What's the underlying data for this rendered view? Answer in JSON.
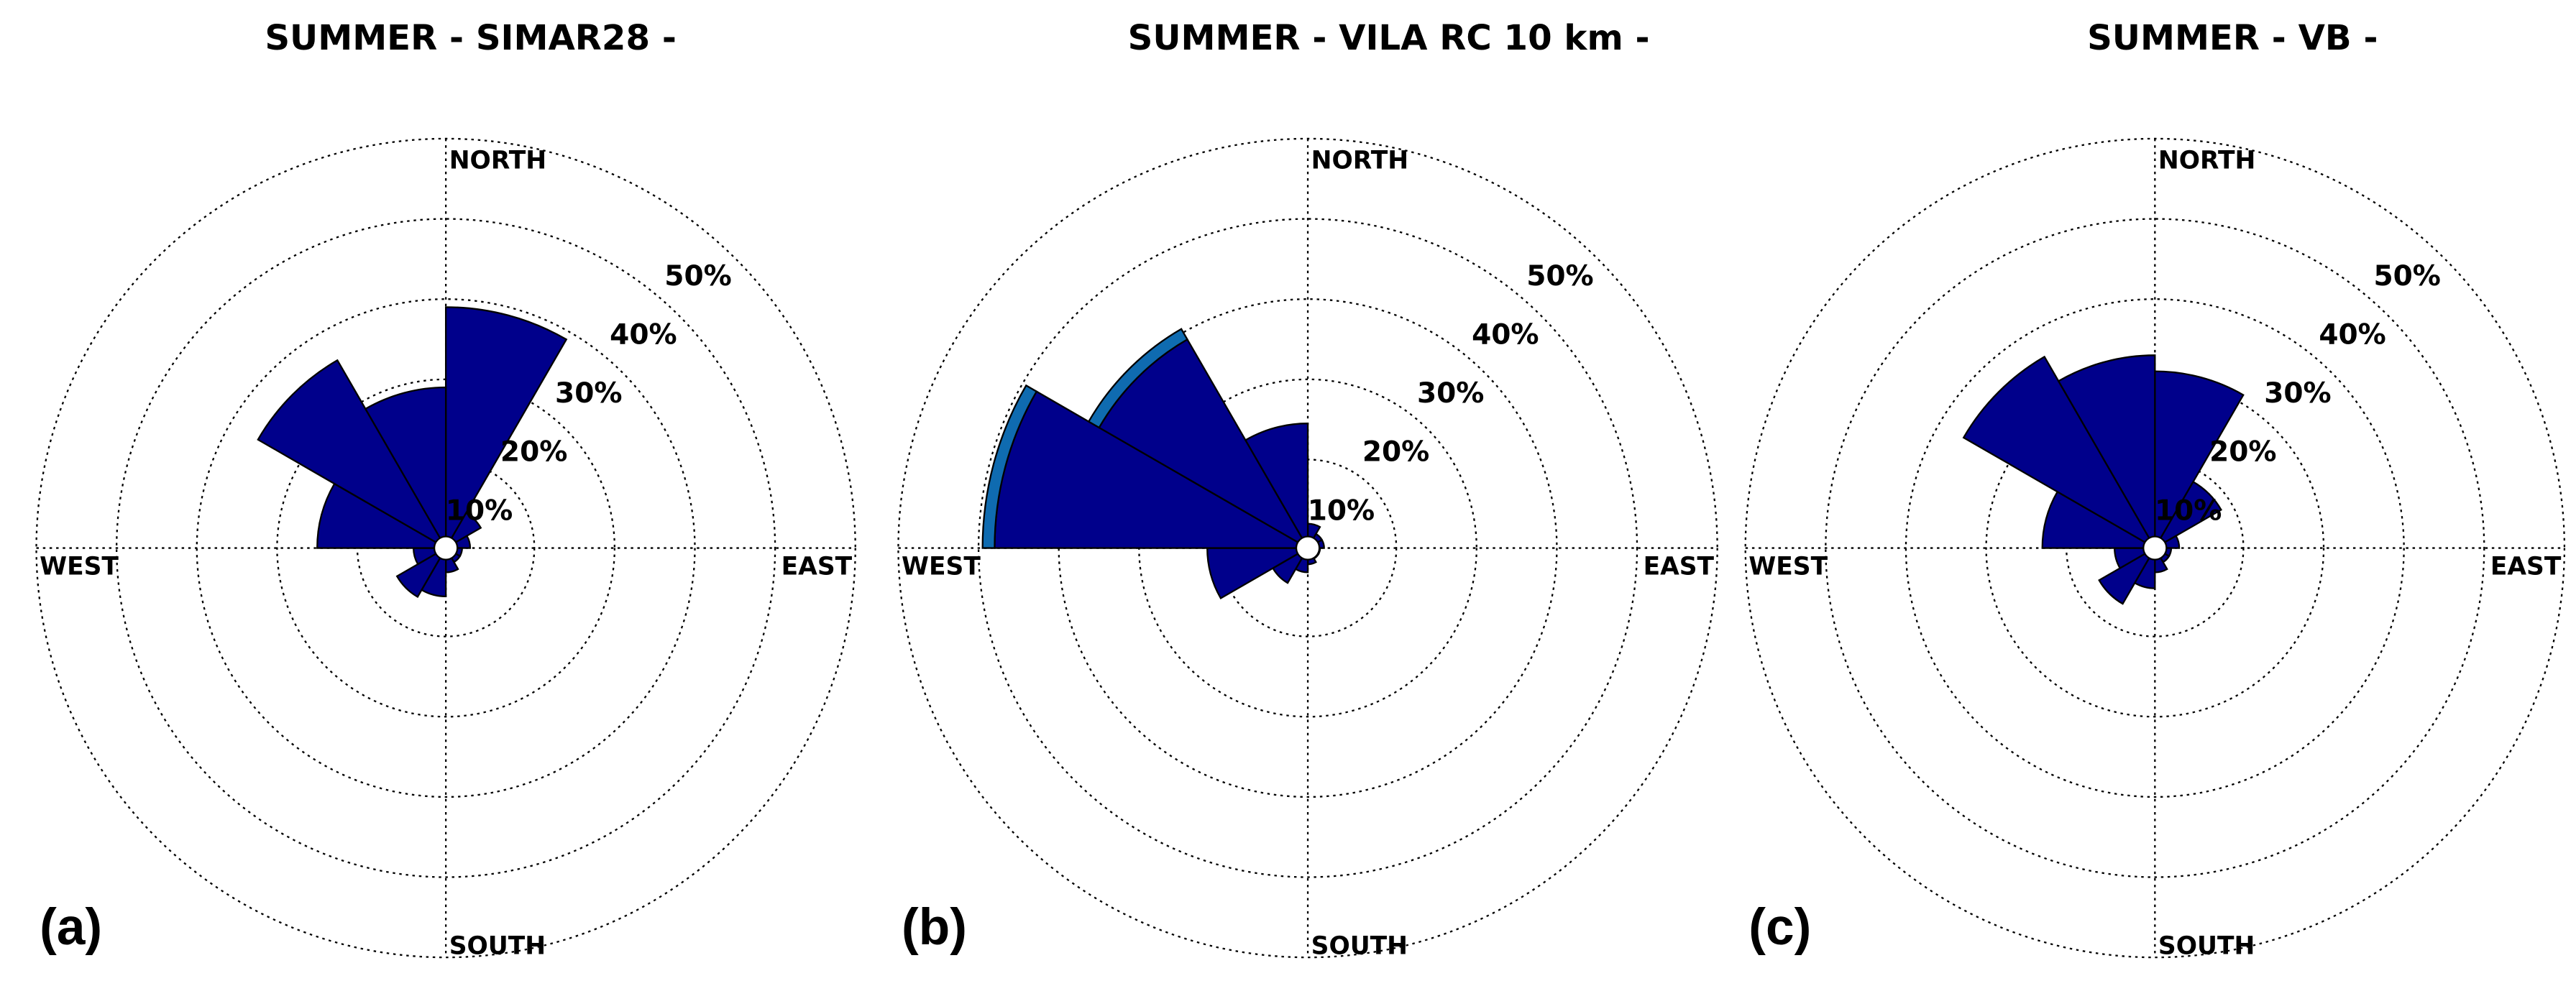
{
  "chart_data": [
    {
      "type": "polar_bar",
      "title": "SUMMER - SIMAR28 -",
      "panel_label": "(a)",
      "direction_labels": [
        "NORTH",
        "EAST",
        "SOUTH",
        "WEST"
      ],
      "x": [
        0,
        30,
        60,
        90,
        120,
        150,
        180,
        210,
        240,
        270,
        300,
        330
      ],
      "series": [
        {
          "color": "#00008b",
          "values": [
            29,
            4,
            2,
            1,
            1,
            2,
            5,
            6,
            3,
            15,
            26,
            19
          ]
        }
      ],
      "rlim": [
        0,
        50
      ],
      "rticks": [
        {
          "value": 10,
          "label": "10%"
        },
        {
          "value": 20,
          "label": "20%"
        },
        {
          "value": 30,
          "label": "30%"
        },
        {
          "value": 40,
          "label": "40%"
        },
        {
          "value": 50,
          "label": "50%"
        }
      ],
      "grid": true
    },
    {
      "type": "polar_bar",
      "title": "SUMMER - VILA RC 10 km -",
      "panel_label": "(b)",
      "direction_labels": [
        "NORTH",
        "EAST",
        "SOUTH",
        "WEST"
      ],
      "x": [
        0,
        30,
        60,
        90,
        120,
        150,
        180,
        210,
        240,
        270,
        300,
        330
      ],
      "series": [
        {
          "color": "#00008b",
          "values": [
            2,
            1,
            1,
            0.5,
            0.5,
            1,
            2,
            4,
            11.5,
            38,
            29,
            14.5
          ]
        },
        {
          "color": "#0f6bb0",
          "values": [
            0,
            0,
            0,
            0,
            0,
            0,
            0,
            0,
            0,
            1.5,
            1.5,
            0
          ]
        }
      ],
      "rlim": [
        0,
        50
      ],
      "rticks": [
        {
          "value": 10,
          "label": "10%"
        },
        {
          "value": 20,
          "label": "20%"
        },
        {
          "value": 30,
          "label": "30%"
        },
        {
          "value": 40,
          "label": "40%"
        },
        {
          "value": 50,
          "label": "50%"
        }
      ],
      "grid": true
    },
    {
      "type": "polar_bar",
      "title": "SUMMER - VB -",
      "panel_label": "(c)",
      "direction_labels": [
        "NORTH",
        "EAST",
        "SOUTH",
        "WEST"
      ],
      "x": [
        0,
        30,
        60,
        90,
        120,
        150,
        180,
        210,
        240,
        270,
        300,
        330
      ],
      "series": [
        {
          "color": "#00008b",
          "values": [
            21,
            8.5,
            2,
            1,
            1,
            2,
            4,
            7,
            4,
            13,
            26.5,
            23
          ]
        }
      ],
      "rlim": [
        0,
        50
      ],
      "rticks": [
        {
          "value": 10,
          "label": "10%"
        },
        {
          "value": 20,
          "label": "20%"
        },
        {
          "value": 30,
          "label": "30%"
        },
        {
          "value": 40,
          "label": "40%"
        },
        {
          "value": 50,
          "label": "50%"
        }
      ],
      "grid": true
    }
  ]
}
